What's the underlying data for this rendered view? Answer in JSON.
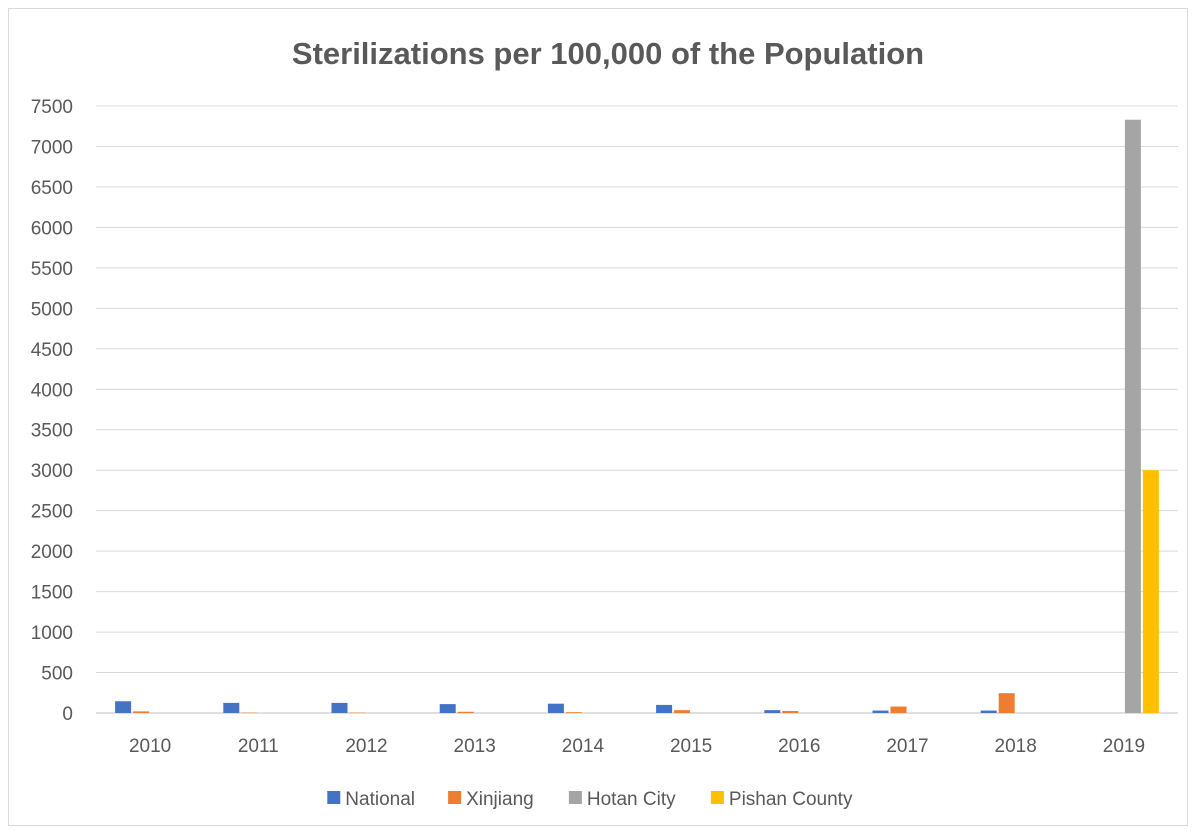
{
  "chart_data": {
    "type": "bar",
    "title": "Sterilizations per 100,000 of the Population",
    "xlabel": "",
    "ylabel": "",
    "categories": [
      "2010",
      "2011",
      "2012",
      "2013",
      "2014",
      "2015",
      "2016",
      "2017",
      "2018",
      "2019"
    ],
    "ylim": [
      0,
      7500
    ],
    "yticks": [
      "0",
      "500",
      "1000",
      "1500",
      "2000",
      "2500",
      "3000",
      "3500",
      "4000",
      "4500",
      "5000",
      "5500",
      "6000",
      "6500",
      "7000",
      "7500"
    ],
    "grid": true,
    "legend_position": "bottom",
    "series": [
      {
        "name": "National",
        "color": "#4472c4",
        "values": [
          145,
          125,
          125,
          110,
          115,
          100,
          35,
          30,
          30,
          0
        ]
      },
      {
        "name": "Xinjiang",
        "color": "#ed7d31",
        "values": [
          20,
          5,
          5,
          15,
          10,
          35,
          25,
          80,
          245,
          0
        ]
      },
      {
        "name": "Hotan City",
        "color": "#a5a5a5",
        "values": [
          0,
          0,
          0,
          0,
          0,
          0,
          0,
          0,
          0,
          7330
        ]
      },
      {
        "name": "Pishan County",
        "color": "#ffc000",
        "values": [
          0,
          0,
          0,
          0,
          0,
          0,
          0,
          0,
          0,
          3000
        ]
      }
    ]
  }
}
